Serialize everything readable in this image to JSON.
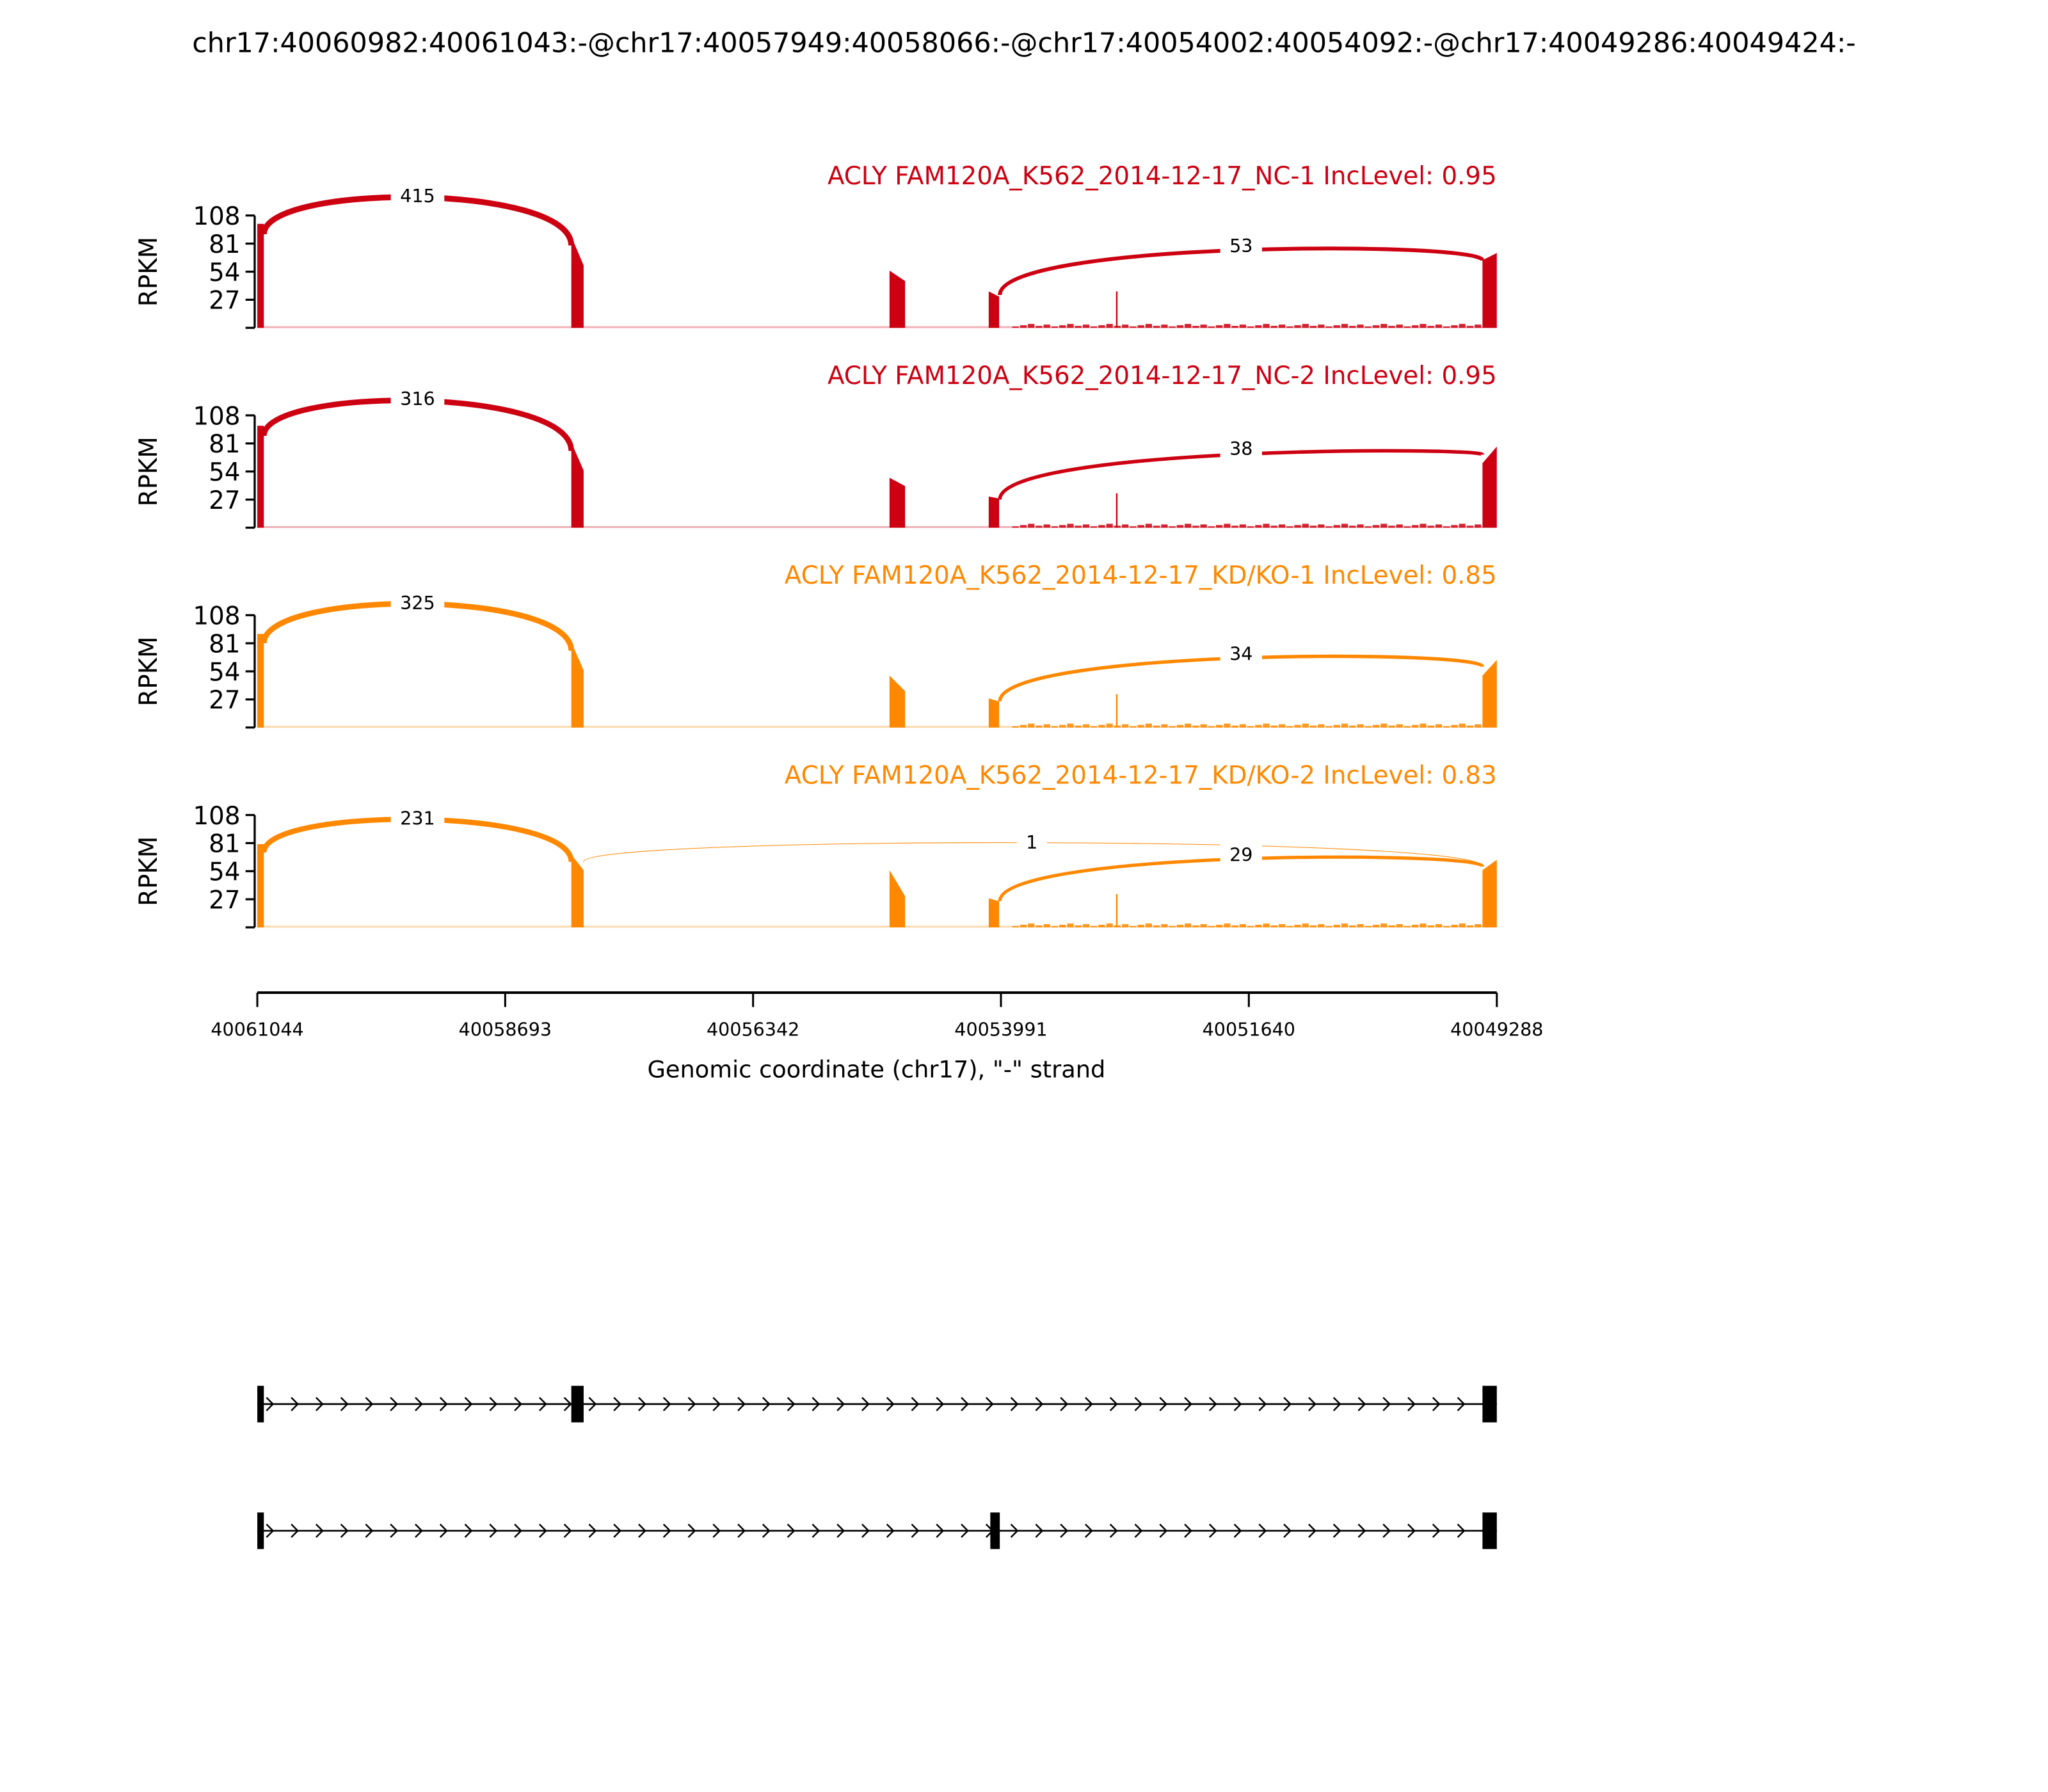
{
  "chart_data": {
    "type": "sashimi",
    "title": "chr17:40060982:40061043:-@chr17:40057949:40058066:-@chr17:40054002:40054092:-@chr17:40049286:40049424:-",
    "xlabel": "Genomic coordinate (chr17), \"-\" strand",
    "ylabel": "RPKM",
    "xlim": [
      40061044,
      40049288
    ],
    "xticks": [
      "40061044",
      "40058693",
      "40056342",
      "40053991",
      "40051640",
      "40049288"
    ],
    "ylim": [
      0,
      108
    ],
    "yticks": [
      "108",
      "81",
      "54",
      "27"
    ],
    "tracks": [
      {
        "label": "ACLY FAM120A_K562_2014-12-17_NC-1 IncLevel: 0.95",
        "color": "#cc0011",
        "coverage": [
          [
            40061044,
            40060982,
            100,
            100
          ],
          [
            40058066,
            40057949,
            88,
            60
          ],
          [
            40055048,
            40054900,
            55,
            45
          ],
          [
            40054107,
            40054008,
            35,
            30
          ],
          [
            40052900,
            40052885,
            35,
            35
          ],
          [
            40049424,
            40049288,
            65,
            72
          ]
        ],
        "junctions": [
          {
            "from": 40060982,
            "to": 40058066,
            "count": "415",
            "peak_rpkm": 127
          },
          {
            "from": 40054002,
            "to": 40049424,
            "count": "53",
            "peak_rpkm": 79
          }
        ]
      },
      {
        "label": "ACLY FAM120A_K562_2014-12-17_NC-2 IncLevel: 0.95",
        "color": "#cc0011",
        "coverage": [
          [
            40061044,
            40060982,
            98,
            98
          ],
          [
            40058066,
            40057949,
            82,
            55
          ],
          [
            40055048,
            40054900,
            48,
            40
          ],
          [
            40054107,
            40054008,
            30,
            28
          ],
          [
            40052900,
            40052885,
            33,
            33
          ],
          [
            40049424,
            40049288,
            62,
            78
          ]
        ],
        "junctions": [
          {
            "from": 40060982,
            "to": 40058066,
            "count": "316",
            "peak_rpkm": 124
          },
          {
            "from": 40054002,
            "to": 40049424,
            "count": "38",
            "peak_rpkm": 76
          }
        ]
      },
      {
        "label": "ACLY FAM120A_K562_2014-12-17_KD/KO-1 IncLevel: 0.85",
        "color": "#ff8800",
        "coverage": [
          [
            40061044,
            40060982,
            90,
            90
          ],
          [
            40058066,
            40057949,
            82,
            55
          ],
          [
            40055048,
            40054900,
            50,
            35
          ],
          [
            40054107,
            40054008,
            28,
            25
          ],
          [
            40052900,
            40052885,
            32,
            32
          ],
          [
            40049424,
            40049288,
            50,
            65
          ]
        ],
        "junctions": [
          {
            "from": 40060982,
            "to": 40058066,
            "count": "325",
            "peak_rpkm": 120
          },
          {
            "from": 40054002,
            "to": 40049424,
            "count": "34",
            "peak_rpkm": 71
          }
        ]
      },
      {
        "label": "ACLY FAM120A_K562_2014-12-17_KD/KO-2 IncLevel: 0.83",
        "color": "#ff8800",
        "coverage": [
          [
            40061044,
            40060982,
            80,
            80
          ],
          [
            40058066,
            40057949,
            70,
            55
          ],
          [
            40055048,
            40054900,
            55,
            30
          ],
          [
            40054107,
            40054008,
            28,
            25
          ],
          [
            40052900,
            40052885,
            32,
            32
          ],
          [
            40049424,
            40049288,
            55,
            65
          ]
        ],
        "junctions": [
          {
            "from": 40060982,
            "to": 40058066,
            "count": "231",
            "peak_rpkm": 105
          },
          {
            "from": 40057949,
            "to": 40049424,
            "count": "1",
            "peak_rpkm": 82
          },
          {
            "from": 40054002,
            "to": 40049424,
            "count": "29",
            "peak_rpkm": 70
          }
        ]
      }
    ],
    "transcripts": [
      {
        "exons": [
          [
            40061044,
            40060982
          ],
          [
            40058066,
            40057949
          ],
          [
            40049424,
            40049288
          ]
        ]
      },
      {
        "exons": [
          [
            40061044,
            40060982
          ],
          [
            40054092,
            40054002
          ],
          [
            40049424,
            40049288
          ]
        ]
      }
    ]
  }
}
